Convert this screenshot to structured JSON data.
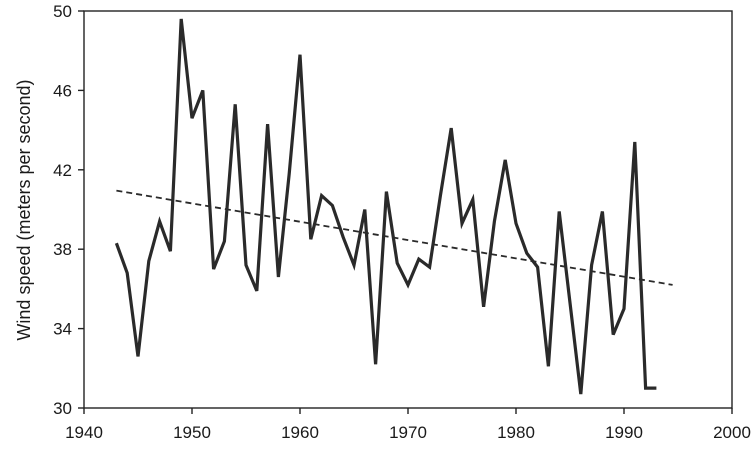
{
  "chart_data": {
    "type": "line",
    "title": "",
    "xlabel": "",
    "ylabel": "Wind speed (meters per second)",
    "xlim": [
      1940,
      2000
    ],
    "ylim": [
      30,
      50
    ],
    "x_ticks": [
      1940,
      1950,
      1960,
      1970,
      1980,
      1990,
      2000
    ],
    "y_ticks": [
      30,
      34,
      38,
      42,
      46,
      50
    ],
    "grid": false,
    "legend": "none",
    "series": [
      {
        "style": "solid",
        "color": "#2a2a2a",
        "x": [
          1943,
          1944,
          1945,
          1946,
          1947,
          1948,
          1949,
          1950,
          1951,
          1952,
          1953,
          1954,
          1955,
          1956,
          1957,
          1958,
          1959,
          1960,
          1961,
          1962,
          1963,
          1964,
          1965,
          1966,
          1967,
          1968,
          1969,
          1970,
          1971,
          1972,
          1973,
          1974,
          1975,
          1976,
          1977,
          1978,
          1979,
          1980,
          1981,
          1982,
          1983,
          1984,
          1985,
          1986,
          1987,
          1988,
          1989,
          1990,
          1991,
          1992,
          1993
        ],
        "y": [
          38.3,
          36.8,
          32.6,
          37.4,
          39.4,
          37.9,
          49.6,
          44.6,
          46.0,
          37.0,
          38.4,
          45.3,
          37.2,
          35.9,
          44.3,
          36.6,
          41.8,
          47.8,
          38.5,
          40.7,
          40.2,
          38.6,
          37.2,
          40.0,
          32.2,
          40.9,
          37.3,
          36.2,
          37.5,
          37.1,
          40.7,
          44.1,
          39.3,
          40.5,
          35.1,
          39.4,
          42.5,
          39.3,
          37.8,
          37.1,
          32.1,
          39.9,
          35.3,
          30.7,
          37.2,
          39.9,
          33.7,
          35.0,
          43.4,
          31.0,
          31.0
        ]
      },
      {
        "style": "dashed",
        "color": "#2a2a2a",
        "x": [
          1943,
          1994.5
        ],
        "y": [
          40.95,
          36.2
        ]
      }
    ]
  }
}
